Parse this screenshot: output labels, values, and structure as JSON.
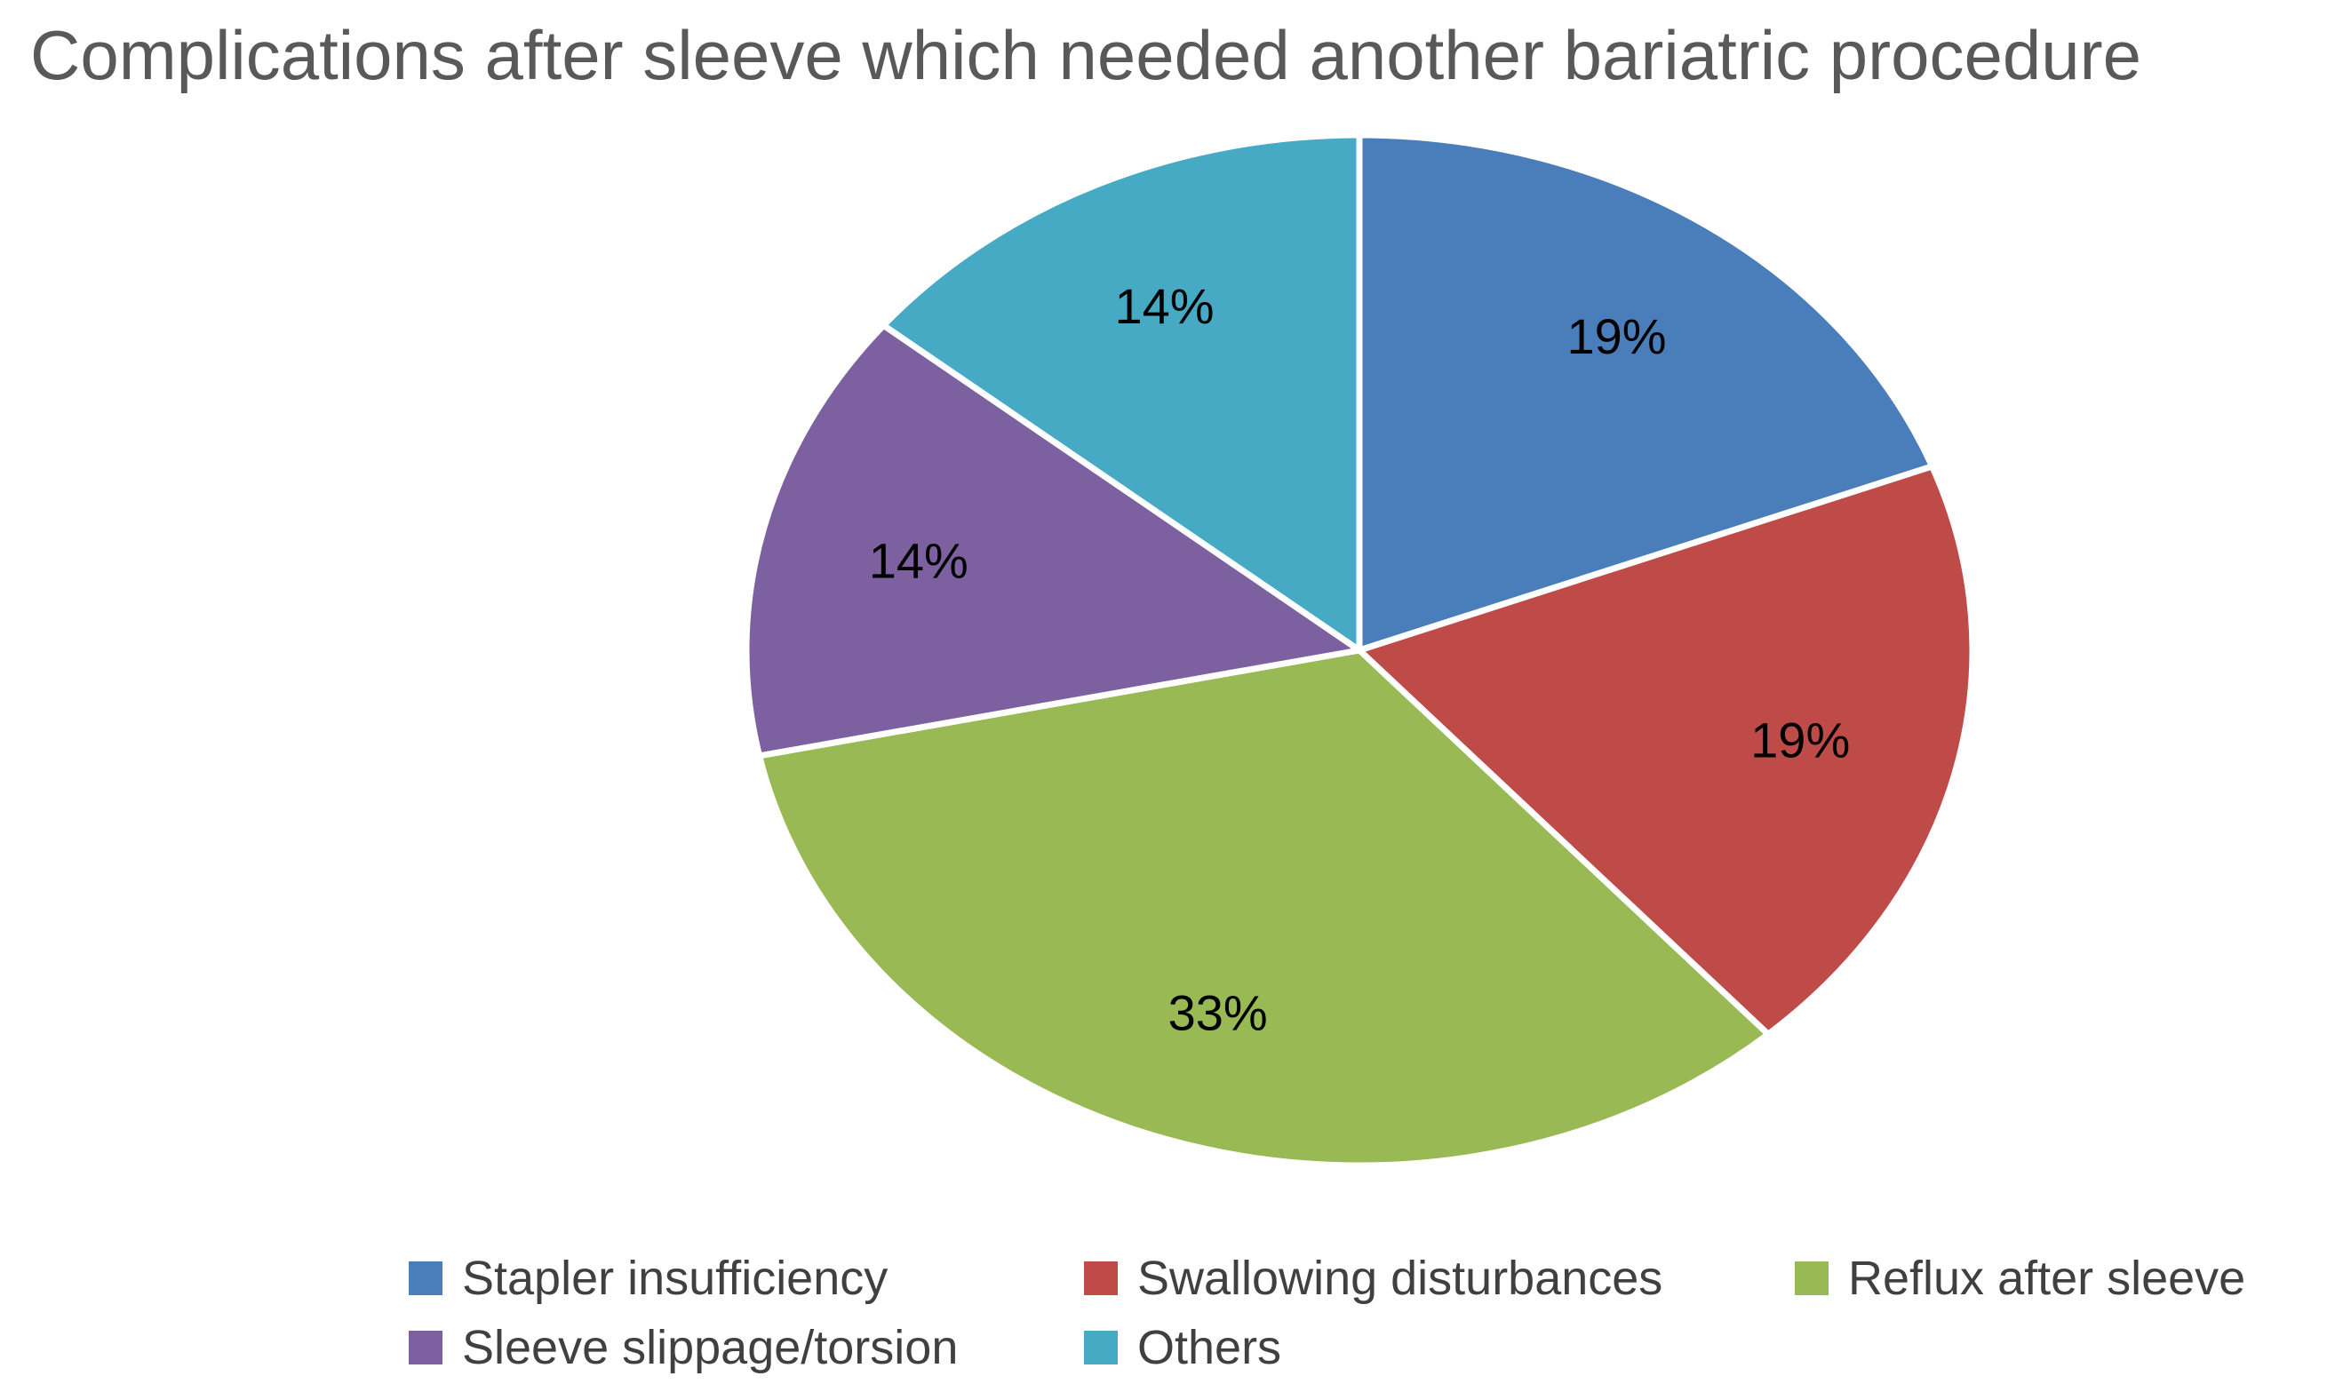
{
  "chart_data": {
    "type": "pie",
    "title": "Complications after sleeve which needed another bariatric procedure",
    "slices": [
      {
        "name": "Stapler insufficiency",
        "value": 19,
        "label": "19%",
        "color": "#4A7EBB"
      },
      {
        "name": "Swallowing disturbances",
        "value": 19,
        "label": "19%",
        "color": "#BE4B48"
      },
      {
        "name": "Reflux after sleeve",
        "value": 33,
        "label": "33%",
        "color": "#98B954"
      },
      {
        "name": "Sleeve slippage/torsion",
        "value": 14,
        "label": "14%",
        "color": "#7D60A0"
      },
      {
        "name": "Others",
        "value": 14,
        "label": "14%",
        "color": "#46AAC5"
      }
    ],
    "legend_position": "bottom"
  }
}
